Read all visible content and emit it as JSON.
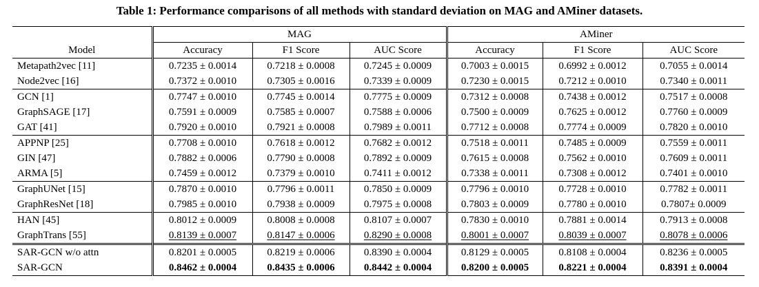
{
  "caption": "Table 1: Performance comparisons of all methods with standard deviation on MAG and AMiner datasets.",
  "header": {
    "model_label": "Model",
    "datasets": [
      "MAG",
      "AMiner"
    ],
    "metrics": [
      "Accuracy",
      "F1 Score",
      "AUC Score",
      "Accuracy",
      "F1 Score",
      "AUC Score"
    ]
  },
  "groups": [
    {
      "rows": [
        {
          "model": "Metapath2vec [11]",
          "values": [
            "0.7235 ± 0.0014",
            "0.7218 ± 0.0008",
            "0.7245 ± 0.0009",
            "0.7003 ± 0.0015",
            "0.6992 ± 0.0012",
            "0.7055 ± 0.0014"
          ]
        },
        {
          "model": "Node2vec [16]",
          "values": [
            "0.7372 ± 0.0010",
            "0.7305 ± 0.0016",
            "0.7339 ± 0.0009",
            "0.7230 ± 0.0015",
            "0.7212 ± 0.0010",
            "0.7340 ± 0.0011"
          ]
        }
      ]
    },
    {
      "rows": [
        {
          "model": "GCN [1]",
          "values": [
            "0.7747 ± 0.0010",
            "0.7745 ± 0.0014",
            "0.7775 ± 0.0009",
            "0.7312 ± 0.0008",
            "0.7438 ± 0.0012",
            "0.7517 ± 0.0008"
          ]
        },
        {
          "model": "GraphSAGE [17]",
          "values": [
            "0.7591 ± 0.0009",
            "0.7585 ± 0.0007",
            "0.7588 ± 0.0006",
            "0.7500 ± 0.0009",
            "0.7625 ± 0.0012",
            "0.7760 ± 0.0009"
          ]
        },
        {
          "model": "GAT [41]",
          "values": [
            "0.7920 ± 0.0010",
            "0.7921 ± 0.0008",
            "0.7989 ± 0.0011",
            "0.7712 ± 0.0008",
            "0.7774 ± 0.0009",
            "0.7820 ± 0.0010"
          ]
        }
      ]
    },
    {
      "rows": [
        {
          "model": "APPNP [25]",
          "values": [
            "0.7708 ± 0.0010",
            "0.7618 ± 0.0012",
            "0.7682 ± 0.0012",
            "0.7518 ± 0.0011",
            "0.7485 ± 0.0009",
            "0.7559 ± 0.0011"
          ]
        },
        {
          "model": "GIN [47]",
          "values": [
            "0.7882 ± 0.0006",
            "0.7790 ± 0.0008",
            "0.7892 ± 0.0009",
            "0.7615 ± 0.0008",
            "0.7562 ± 0.0010",
            "0.7609 ± 0.0011"
          ]
        },
        {
          "model": "ARMA [5]",
          "values": [
            "0.7459 ± 0.0012",
            "0.7379 ± 0.0010",
            "0.7411 ± 0.0012",
            "0.7338 ± 0.0011",
            "0.7308 ± 0.0012",
            "0.7401 ± 0.0010"
          ]
        }
      ]
    },
    {
      "rows": [
        {
          "model": "GraphUNet [15]",
          "values": [
            "0.7870 ± 0.0010",
            "0.7796 ± 0.0011",
            "0.7850 ± 0.0009",
            "0.7796 ± 0.0010",
            "0.7728 ± 0.0010",
            "0.7782 ± 0.0011"
          ]
        },
        {
          "model": "GraphResNet [18]",
          "values": [
            "0.7985 ± 0.0010",
            "0.7938 ± 0.0009",
            "0.7975 ± 0.0008",
            "0.7803 ± 0.0009",
            "0.7780 ± 0.0010",
            "0.7807± 0.0009"
          ]
        }
      ]
    },
    {
      "rows": [
        {
          "model": "HAN [45]",
          "values": [
            "0.8012 ± 0.0009",
            "0.8008 ± 0.0008",
            "0.8107 ± 0.0007",
            "0.7830 ± 0.0010",
            "0.7881 ± 0.0014",
            "0.7913 ± 0.0008"
          ]
        },
        {
          "model": "GraphTrans [55]",
          "underline": true,
          "values": [
            "0.8139 ± 0.0007",
            "0.8147 ± 0.0006",
            "0.8290 ± 0.0008",
            "0.8001 ± 0.0007",
            "0.8039 ± 0.0007",
            "0.8078 ± 0.0006"
          ]
        }
      ]
    },
    {
      "double_top": true,
      "rows": [
        {
          "model": "SAR-GCN w/o attn",
          "values": [
            "0.8201 ± 0.0005",
            "0.8219 ± 0.0006",
            "0.8390 ± 0.0004",
            "0.8129 ± 0.0005",
            "0.8108 ± 0.0004",
            "0.8236 ± 0.0005"
          ]
        },
        {
          "model": "SAR-GCN",
          "bold": true,
          "values": [
            "0.8462 ± 0.0004",
            "0.8435 ± 0.0006",
            "0.8442 ± 0.0004",
            "0.8200 ± 0.0005",
            "0.8221 ± 0.0004",
            "0.8391 ± 0.0004"
          ]
        }
      ]
    }
  ]
}
